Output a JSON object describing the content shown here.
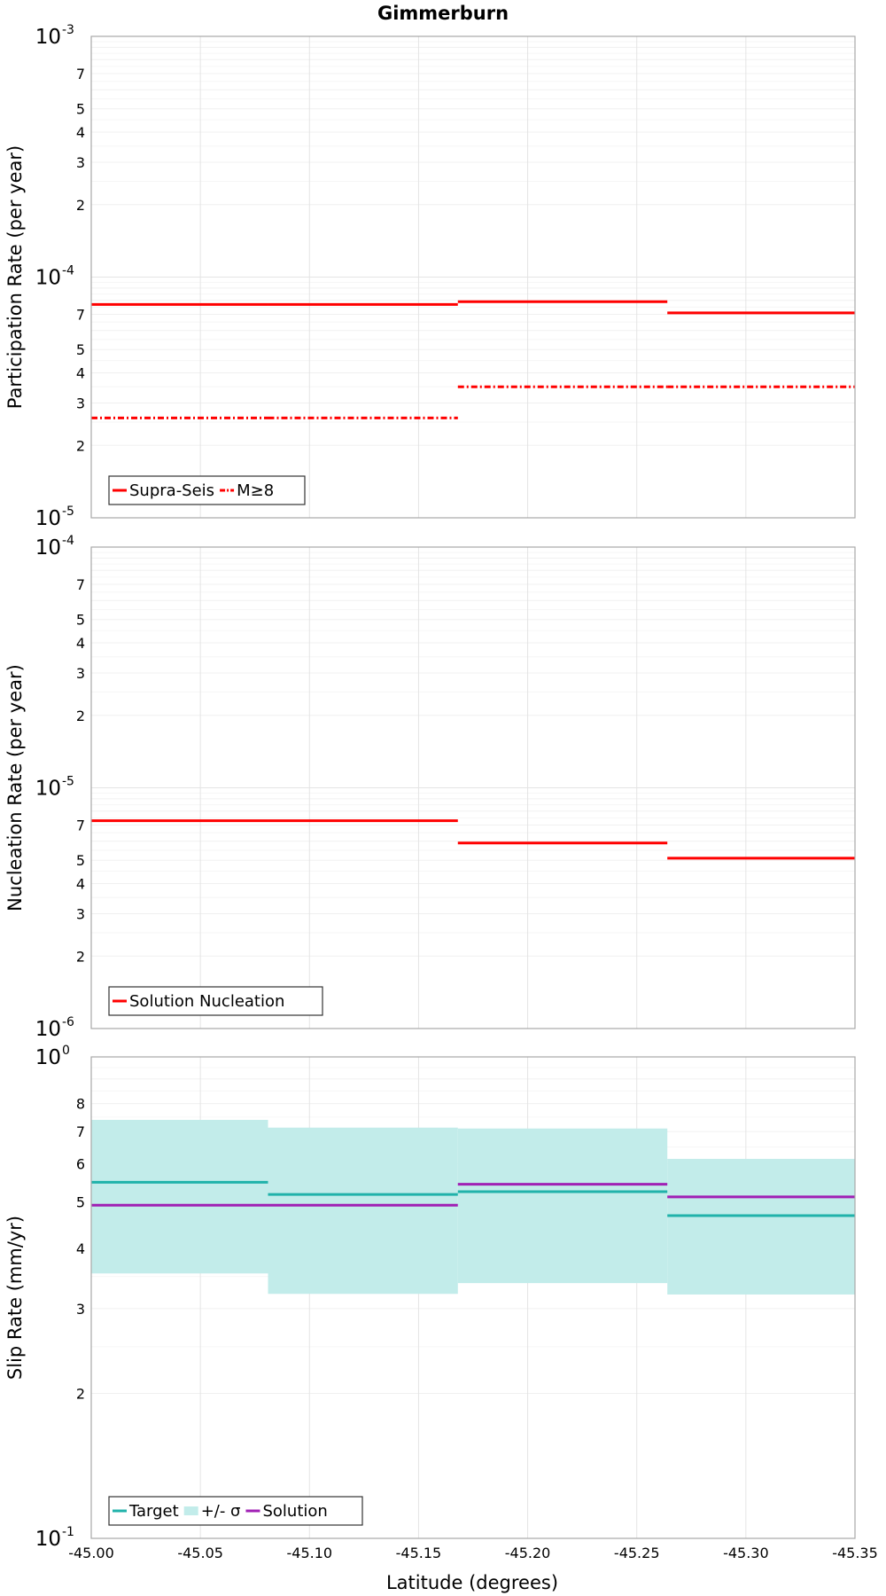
{
  "title": "Gimmerburn",
  "xlabel": "Latitude (degrees)",
  "chart_data": [
    {
      "type": "line",
      "ylabel": "Participation Rate (per year)",
      "yscale": "log",
      "ylim": [
        1e-05,
        0.001
      ],
      "xlim": [
        -45.0,
        -45.35
      ],
      "xticks": [
        "-45.00",
        "-45.05",
        "-45.10",
        "-45.15",
        "-45.20",
        "-45.25",
        "-45.30",
        "-45.35"
      ],
      "yticks": [
        {
          "mant": "10",
          "exp": "-5",
          "value": 1e-05
        },
        {
          "mant": "2",
          "value": 2e-05
        },
        {
          "mant": "3",
          "value": 3e-05
        },
        {
          "mant": "4",
          "value": 4e-05
        },
        {
          "mant": "5",
          "value": 5e-05
        },
        {
          "mant": "7",
          "value": 7e-05
        },
        {
          "mant": "10",
          "exp": "-4",
          "value": 0.0001
        },
        {
          "mant": "2",
          "value": 0.0002
        },
        {
          "mant": "3",
          "value": 0.0003
        },
        {
          "mant": "4",
          "value": 0.0004
        },
        {
          "mant": "5",
          "value": 0.0005
        },
        {
          "mant": "7",
          "value": 0.0007
        },
        {
          "mant": "10",
          "exp": "-3",
          "value": 0.001
        }
      ],
      "grid": true,
      "legend_position": "bottom-left",
      "series": [
        {
          "name": "Supra-Seis",
          "color": "#ff0000",
          "style": "solid",
          "steps": [
            {
              "x0": -45.0,
              "x1": -45.081,
              "y": 7.7e-05
            },
            {
              "x0": -45.081,
              "x1": -45.168,
              "y": 7.7e-05
            },
            {
              "x0": -45.168,
              "x1": -45.264,
              "y": 7.9e-05
            },
            {
              "x0": -45.264,
              "x1": -45.35,
              "y": 7.1e-05
            }
          ]
        },
        {
          "name": "M≥8",
          "color": "#ff0000",
          "style": "dashdot",
          "steps": [
            {
              "x0": -45.0,
              "x1": -45.081,
              "y": 2.6e-05
            },
            {
              "x0": -45.081,
              "x1": -45.168,
              "y": 2.6e-05
            },
            {
              "x0": -45.168,
              "x1": -45.264,
              "y": 3.5e-05
            },
            {
              "x0": -45.264,
              "x1": -45.35,
              "y": 3.5e-05
            }
          ]
        }
      ]
    },
    {
      "type": "line",
      "ylabel": "Nucleation Rate (per year)",
      "yscale": "log",
      "ylim": [
        1e-06,
        0.0001
      ],
      "xlim": [
        -45.0,
        -45.35
      ],
      "xticks": [
        "-45.00",
        "-45.05",
        "-45.10",
        "-45.15",
        "-45.20",
        "-45.25",
        "-45.30",
        "-45.35"
      ],
      "yticks": [
        {
          "mant": "10",
          "exp": "-6",
          "value": 1e-06
        },
        {
          "mant": "2",
          "value": 2e-06
        },
        {
          "mant": "3",
          "value": 3e-06
        },
        {
          "mant": "4",
          "value": 4e-06
        },
        {
          "mant": "5",
          "value": 5e-06
        },
        {
          "mant": "7",
          "value": 7e-06
        },
        {
          "mant": "10",
          "exp": "-5",
          "value": 1e-05
        },
        {
          "mant": "2",
          "value": 2e-05
        },
        {
          "mant": "3",
          "value": 3e-05
        },
        {
          "mant": "4",
          "value": 4e-05
        },
        {
          "mant": "5",
          "value": 5e-05
        },
        {
          "mant": "7",
          "value": 7e-05
        },
        {
          "mant": "10",
          "exp": "-4",
          "value": 0.0001
        }
      ],
      "grid": true,
      "legend_position": "bottom-left",
      "series": [
        {
          "name": "Solution Nucleation",
          "color": "#ff0000",
          "style": "solid",
          "steps": [
            {
              "x0": -45.0,
              "x1": -45.081,
              "y": 7.3e-06
            },
            {
              "x0": -45.081,
              "x1": -45.168,
              "y": 7.3e-06
            },
            {
              "x0": -45.168,
              "x1": -45.264,
              "y": 5.9e-06
            },
            {
              "x0": -45.264,
              "x1": -45.35,
              "y": 5.1e-06
            }
          ]
        }
      ]
    },
    {
      "type": "line",
      "ylabel": "Slip Rate (mm/yr)",
      "yscale": "log",
      "ylim": [
        0.1,
        1.0
      ],
      "xlim": [
        -45.0,
        -45.35
      ],
      "xticks": [
        "-45.00",
        "-45.05",
        "-45.10",
        "-45.15",
        "-45.20",
        "-45.25",
        "-45.30",
        "-45.35"
      ],
      "yticks": [
        {
          "mant": "10",
          "exp": "-1",
          "value": 0.1
        },
        {
          "mant": "2",
          "value": 0.2
        },
        {
          "mant": "3",
          "value": 0.3
        },
        {
          "mant": "4",
          "value": 0.4
        },
        {
          "mant": "5",
          "value": 0.5
        },
        {
          "mant": "6",
          "value": 0.6
        },
        {
          "mant": "7",
          "value": 0.7
        },
        {
          "mant": "8",
          "value": 0.8
        },
        {
          "mant": "10",
          "exp": "0",
          "value": 1.0
        }
      ],
      "grid": true,
      "legend_position": "bottom-left",
      "band": {
        "name": "+/- σ",
        "color": "#c2ecea",
        "steps": [
          {
            "x0": -45.0,
            "x1": -45.081,
            "lo": 0.355,
            "hi": 0.74
          },
          {
            "x0": -45.081,
            "x1": -45.168,
            "lo": 0.322,
            "hi": 0.713
          },
          {
            "x0": -45.168,
            "x1": -45.264,
            "lo": 0.339,
            "hi": 0.71
          },
          {
            "x0": -45.264,
            "x1": -45.35,
            "lo": 0.321,
            "hi": 0.614
          }
        ]
      },
      "series": [
        {
          "name": "Target",
          "color": "#20b2aa",
          "style": "solid",
          "steps": [
            {
              "x0": -45.0,
              "x1": -45.081,
              "y": 0.549
            },
            {
              "x0": -45.081,
              "x1": -45.168,
              "y": 0.518
            },
            {
              "x0": -45.168,
              "x1": -45.264,
              "y": 0.525
            },
            {
              "x0": -45.264,
              "x1": -45.35,
              "y": 0.468
            }
          ]
        },
        {
          "name": "Solution",
          "color": "#a020b4",
          "style": "solid",
          "steps": [
            {
              "x0": -45.0,
              "x1": -45.081,
              "y": 0.492
            },
            {
              "x0": -45.081,
              "x1": -45.168,
              "y": 0.492
            },
            {
              "x0": -45.168,
              "x1": -45.264,
              "y": 0.544
            },
            {
              "x0": -45.264,
              "x1": -45.35,
              "y": 0.512
            }
          ]
        }
      ]
    }
  ]
}
